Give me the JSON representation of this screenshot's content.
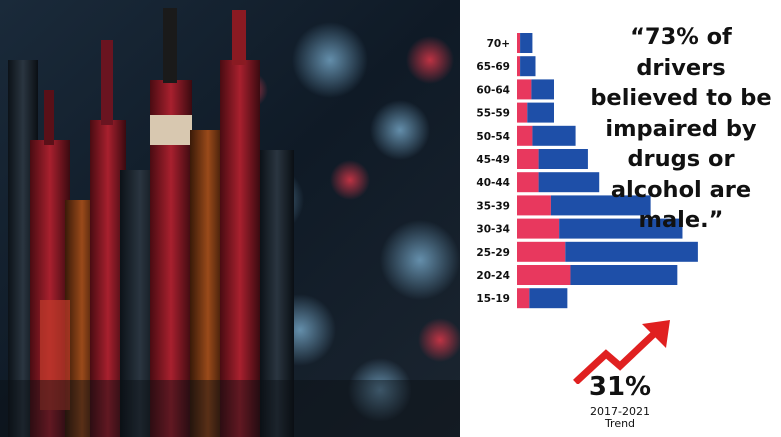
{
  "quote": "“73% of drivers believed to be impaired by drugs or alcohol are male.”",
  "trend": {
    "value": "31%",
    "caption_line1": "2017-2021",
    "caption_line2": "Trend"
  },
  "icons": {
    "arrow": "trend-up-arrow-icon",
    "photo": "liquor-bottles-photo"
  },
  "colors": {
    "female": "#e8385e",
    "male": "#1e4fa8",
    "arrow": "#e02020",
    "text": "#111111"
  },
  "chart_data": {
    "type": "bar",
    "orientation": "horizontal",
    "stacked": true,
    "categories": [
      "70+",
      "65-69",
      "60-64",
      "55-59",
      "50-54",
      "45-49",
      "40-44",
      "35-39",
      "30-34",
      "25-29",
      "20-24",
      "15-19"
    ],
    "series": [
      {
        "values": [
          3,
          3,
          14,
          10,
          15,
          21,
          21,
          33,
          41,
          47,
          52,
          12
        ]
      },
      {
        "values": [
          12,
          15,
          22,
          26,
          42,
          48,
          59,
          97,
          120,
          129,
          104,
          37
        ]
      }
    ],
    "xlim": [
      0,
      180
    ],
    "grid": false,
    "legend": "none"
  }
}
